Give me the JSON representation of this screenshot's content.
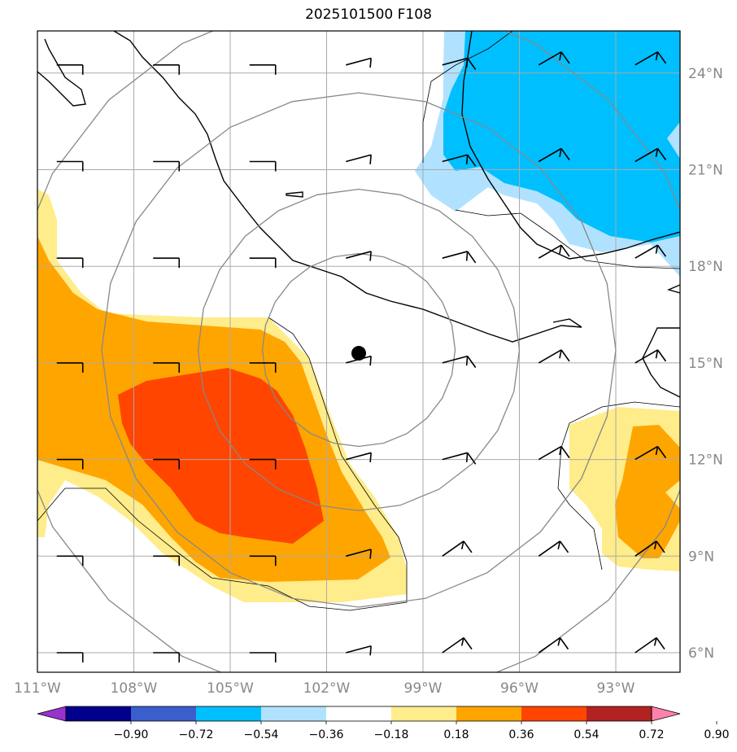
{
  "title": "2025101500 F108",
  "map": {
    "lon_min": -111,
    "lon_max": -91.0,
    "lat_min": 5.3,
    "lat_max": 25.2,
    "lon_labels": [
      "111°W",
      "108°W",
      "105°W",
      "102°W",
      "99°W",
      "96°W",
      "93°W"
    ],
    "lon_values": [
      -111,
      -108,
      -105,
      -102,
      -99,
      -96,
      -93
    ],
    "lat_labels": [
      "24°N",
      "21°N",
      "18°N",
      "15°N",
      "12°N",
      "9°N",
      "6°N"
    ],
    "lat_values": [
      24,
      21,
      18,
      15,
      12,
      9,
      6
    ],
    "center_marker": {
      "lon": -101.0,
      "lat": 15.3
    },
    "range_rings_deg": [
      3,
      5,
      8,
      11
    ],
    "colors": {
      "grid": "#aaaaaa",
      "rings": "#888888",
      "coast": "#000000",
      "land_label": "#888888"
    }
  },
  "colorbar": {
    "tick_labels": [
      "−0.90",
      "−0.72",
      "−0.54",
      "−0.36",
      "−0.18",
      "0.18",
      "0.36",
      "0.54",
      "0.72",
      "0.90"
    ],
    "colors": [
      "#9932cc",
      "#00008b",
      "#3a5fcd",
      "#00bfff",
      "#b0e2ff",
      "#ffffff",
      "#ffec8b",
      "#ffa500",
      "#ff4500",
      "#b22222",
      "#ff82ab"
    ]
  },
  "chart_data": {
    "type": "map",
    "field_shading": [
      {
        "name": "negative -0.54 to -0.36",
        "color": "#00bfff",
        "region": "northeast Gulf of Mexico 19N-25N, 98W-91W"
      },
      {
        "name": "negative -0.36 to -0.18",
        "color": "#b0e2ff",
        "region": "border around northeast blue area"
      },
      {
        "name": "positive 0.54 to 0.72",
        "color": "#ff4500",
        "region": "southwest core 10N-14N, 109W-102W"
      },
      {
        "name": "positive 0.36 to 0.54",
        "color": "#ffa500",
        "region": "southwest Pacific 9N-17N, 111W-101W; southeast 9N-13N, 94W-91W"
      },
      {
        "name": "positive 0.18 to 0.36",
        "color": "#ffec8b",
        "region": "outer border of positive areas"
      }
    ],
    "wind_barbs_lon": [
      -110.5,
      -107.5,
      -104.5,
      -101.5,
      -98.5,
      -95.5,
      -92.5
    ],
    "wind_barbs_lat": [
      24,
      21,
      18,
      15,
      12,
      9,
      6
    ]
  }
}
